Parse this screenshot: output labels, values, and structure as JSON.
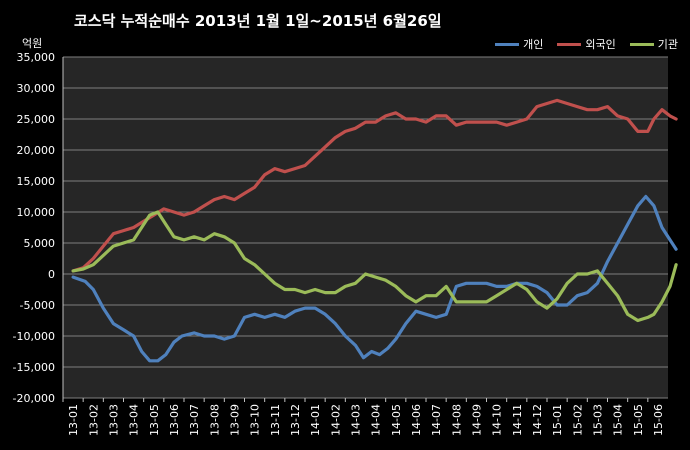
{
  "chart_data": {
    "type": "line",
    "title": "코스닥 누적순매수 2013년 1월 1일~2015년 6월26일",
    "unit_label": "억원",
    "ylim": [
      -20000,
      35000
    ],
    "yticks": [
      35000,
      30000,
      25000,
      20000,
      15000,
      10000,
      5000,
      0,
      -5000,
      -10000,
      -15000,
      -20000
    ],
    "ytick_labels": [
      "35,000",
      "30,000",
      "25,000",
      "20,000",
      "15,000",
      "10,000",
      "5,000",
      "0",
      "-5,000",
      "-10,000",
      "-15,000",
      "-20,000"
    ],
    "categories": [
      "13-01",
      "13-02",
      "13-03",
      "13-04",
      "13-05",
      "13-06",
      "13-07",
      "13-08",
      "13-09",
      "13-10",
      "13-11",
      "13-12",
      "14-01",
      "14-02",
      "14-03",
      "14-04",
      "14-05",
      "14-06",
      "14-07",
      "14-08",
      "14-09",
      "14-10",
      "14-11",
      "14-12",
      "15-01",
      "15-02",
      "15-03",
      "15-04",
      "15-05",
      "15-06"
    ],
    "grid": true,
    "legend_position": "top-right",
    "series": [
      {
        "name": "개인",
        "color": "#4f81bd",
        "values": [
          [
            0,
            -500
          ],
          [
            0.6,
            -1200
          ],
          [
            1,
            -2500
          ],
          [
            1.5,
            -5500
          ],
          [
            2,
            -8000
          ],
          [
            2.5,
            -9000
          ],
          [
            3,
            -10000
          ],
          [
            3.4,
            -12500
          ],
          [
            3.8,
            -14000
          ],
          [
            4.2,
            -14000
          ],
          [
            4.6,
            -13000
          ],
          [
            5,
            -11000
          ],
          [
            5.4,
            -10000
          ],
          [
            6,
            -9500
          ],
          [
            6.5,
            -10000
          ],
          [
            7,
            -10000
          ],
          [
            7.5,
            -10500
          ],
          [
            8,
            -10000
          ],
          [
            8.5,
            -7000
          ],
          [
            9,
            -6500
          ],
          [
            9.5,
            -7000
          ],
          [
            10,
            -6500
          ],
          [
            10.5,
            -7000
          ],
          [
            11,
            -6000
          ],
          [
            11.5,
            -5500
          ],
          [
            12,
            -5500
          ],
          [
            12.5,
            -6500
          ],
          [
            13,
            -8000
          ],
          [
            13.5,
            -10000
          ],
          [
            14,
            -11500
          ],
          [
            14.4,
            -13500
          ],
          [
            14.8,
            -12500
          ],
          [
            15.2,
            -13000
          ],
          [
            15.6,
            -12000
          ],
          [
            16,
            -10500
          ],
          [
            16.5,
            -8000
          ],
          [
            17,
            -6000
          ],
          [
            17.5,
            -6500
          ],
          [
            18,
            -7000
          ],
          [
            18.5,
            -6500
          ],
          [
            19,
            -2000
          ],
          [
            19.5,
            -1500
          ],
          [
            20,
            -1500
          ],
          [
            20.5,
            -1500
          ],
          [
            21,
            -2000
          ],
          [
            21.5,
            -2000
          ],
          [
            22,
            -1500
          ],
          [
            22.5,
            -1500
          ],
          [
            23,
            -2000
          ],
          [
            23.5,
            -3000
          ],
          [
            24,
            -5000
          ],
          [
            24.5,
            -5000
          ],
          [
            25,
            -3500
          ],
          [
            25.5,
            -3000
          ],
          [
            26,
            -1500
          ],
          [
            26.5,
            2000
          ],
          [
            27,
            5000
          ],
          [
            27.5,
            8000
          ],
          [
            28,
            11000
          ],
          [
            28.4,
            12500
          ],
          [
            28.8,
            11000
          ],
          [
            29.2,
            7500
          ],
          [
            29.6,
            5500
          ],
          [
            29.9,
            4000
          ]
        ]
      },
      {
        "name": "외국인",
        "color": "#c0504d",
        "values": [
          [
            0,
            500
          ],
          [
            0.5,
            1000
          ],
          [
            1,
            2500
          ],
          [
            1.5,
            4500
          ],
          [
            2,
            6500
          ],
          [
            2.5,
            7000
          ],
          [
            3,
            7500
          ],
          [
            3.5,
            8500
          ],
          [
            4,
            9500
          ],
          [
            4.5,
            10500
          ],
          [
            5,
            10000
          ],
          [
            5.5,
            9500
          ],
          [
            6,
            10000
          ],
          [
            6.5,
            11000
          ],
          [
            7,
            12000
          ],
          [
            7.5,
            12500
          ],
          [
            8,
            12000
          ],
          [
            8.5,
            13000
          ],
          [
            9,
            14000
          ],
          [
            9.5,
            16000
          ],
          [
            10,
            17000
          ],
          [
            10.5,
            16500
          ],
          [
            11,
            17000
          ],
          [
            11.5,
            17500
          ],
          [
            12,
            19000
          ],
          [
            12.5,
            20500
          ],
          [
            13,
            22000
          ],
          [
            13.5,
            23000
          ],
          [
            14,
            23500
          ],
          [
            14.5,
            24500
          ],
          [
            15,
            24500
          ],
          [
            15.5,
            25500
          ],
          [
            16,
            26000
          ],
          [
            16.5,
            25000
          ],
          [
            17,
            25000
          ],
          [
            17.5,
            24500
          ],
          [
            18,
            25500
          ],
          [
            18.5,
            25500
          ],
          [
            19,
            24000
          ],
          [
            19.5,
            24500
          ],
          [
            20,
            24500
          ],
          [
            20.5,
            24500
          ],
          [
            21,
            24500
          ],
          [
            21.5,
            24000
          ],
          [
            22,
            24500
          ],
          [
            22.5,
            25000
          ],
          [
            23,
            27000
          ],
          [
            23.5,
            27500
          ],
          [
            24,
            28000
          ],
          [
            24.5,
            27500
          ],
          [
            25,
            27000
          ],
          [
            25.5,
            26500
          ],
          [
            26,
            26500
          ],
          [
            26.5,
            27000
          ],
          [
            27,
            25500
          ],
          [
            27.5,
            25000
          ],
          [
            28,
            23000
          ],
          [
            28.5,
            23000
          ],
          [
            28.8,
            25000
          ],
          [
            29.2,
            26500
          ],
          [
            29.6,
            25500
          ],
          [
            29.9,
            25000
          ]
        ]
      },
      {
        "name": "기관",
        "color": "#9bbb59",
        "values": [
          [
            0,
            500
          ],
          [
            0.5,
            800
          ],
          [
            1,
            1500
          ],
          [
            1.5,
            3000
          ],
          [
            2,
            4500
          ],
          [
            2.5,
            5000
          ],
          [
            3,
            5500
          ],
          [
            3.5,
            8000
          ],
          [
            3.8,
            9500
          ],
          [
            4.2,
            10000
          ],
          [
            4.6,
            8000
          ],
          [
            5,
            6000
          ],
          [
            5.5,
            5500
          ],
          [
            6,
            6000
          ],
          [
            6.5,
            5500
          ],
          [
            7,
            6500
          ],
          [
            7.5,
            6000
          ],
          [
            8,
            5000
          ],
          [
            8.5,
            2500
          ],
          [
            9,
            1500
          ],
          [
            9.5,
            0
          ],
          [
            10,
            -1500
          ],
          [
            10.5,
            -2500
          ],
          [
            11,
            -2500
          ],
          [
            11.5,
            -3000
          ],
          [
            12,
            -2500
          ],
          [
            12.5,
            -3000
          ],
          [
            13,
            -3000
          ],
          [
            13.5,
            -2000
          ],
          [
            14,
            -1500
          ],
          [
            14.5,
            0
          ],
          [
            15,
            -500
          ],
          [
            15.5,
            -1000
          ],
          [
            16,
            -2000
          ],
          [
            16.5,
            -3500
          ],
          [
            17,
            -4500
          ],
          [
            17.5,
            -3500
          ],
          [
            18,
            -3500
          ],
          [
            18.5,
            -2000
          ],
          [
            19,
            -4500
          ],
          [
            19.5,
            -4500
          ],
          [
            20,
            -4500
          ],
          [
            20.5,
            -4500
          ],
          [
            21,
            -3500
          ],
          [
            21.5,
            -2500
          ],
          [
            22,
            -1500
          ],
          [
            22.5,
            -2500
          ],
          [
            23,
            -4500
          ],
          [
            23.5,
            -5500
          ],
          [
            24,
            -4000
          ],
          [
            24.5,
            -1500
          ],
          [
            25,
            0
          ],
          [
            25.5,
            0
          ],
          [
            26,
            500
          ],
          [
            26.5,
            -1500
          ],
          [
            27,
            -3500
          ],
          [
            27.5,
            -6500
          ],
          [
            28,
            -7500
          ],
          [
            28.5,
            -7000
          ],
          [
            28.8,
            -6500
          ],
          [
            29.2,
            -4500
          ],
          [
            29.6,
            -2000
          ],
          [
            29.9,
            1500
          ]
        ]
      }
    ]
  }
}
